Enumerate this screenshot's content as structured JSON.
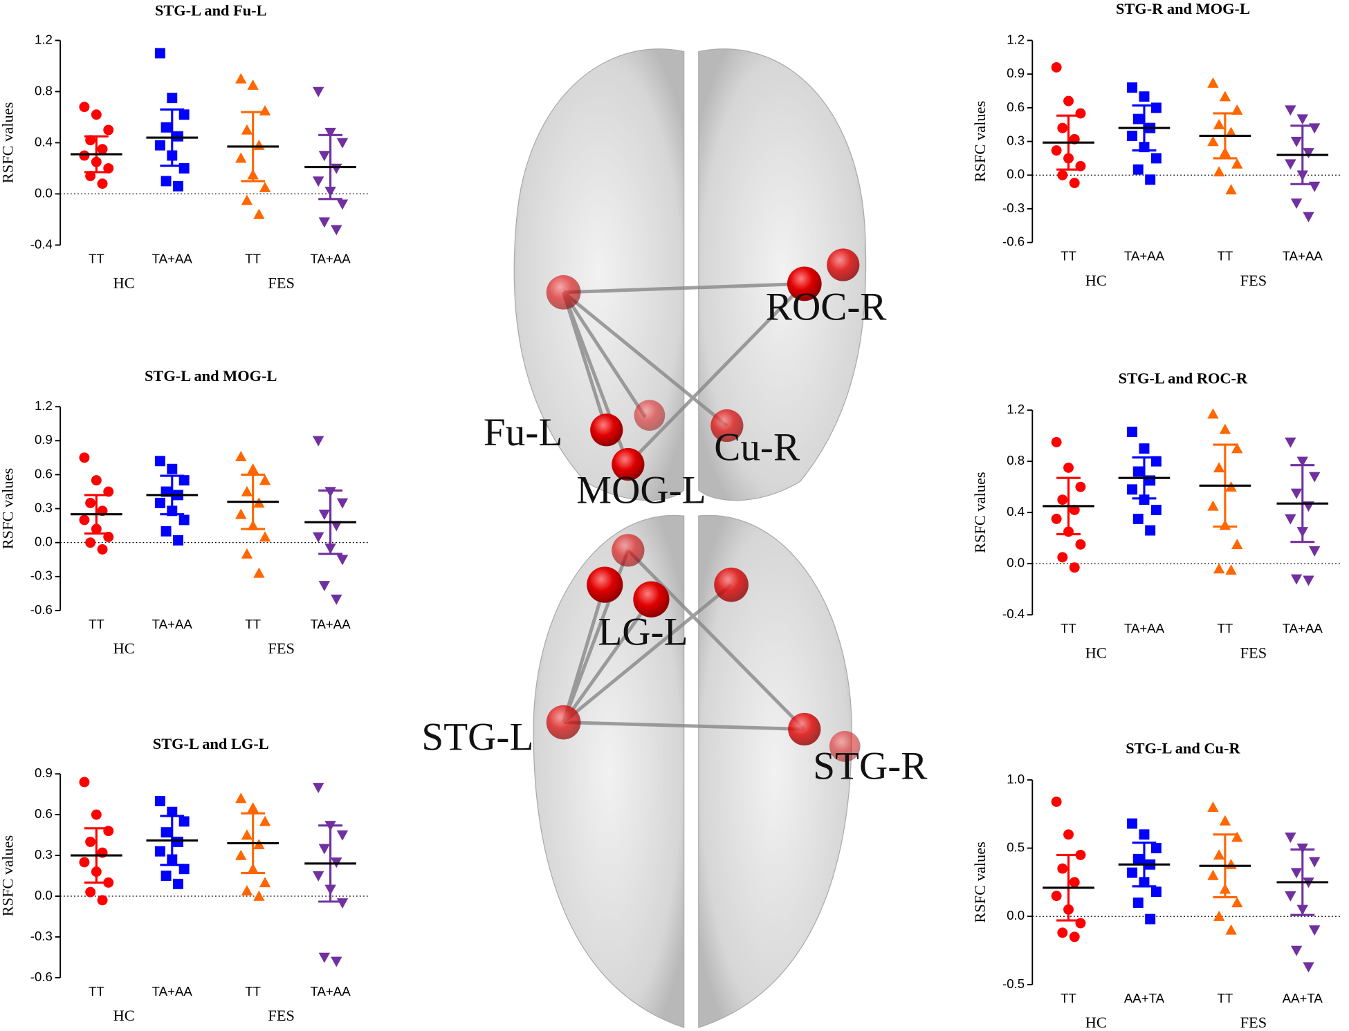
{
  "chart_data": [
    {
      "type": "scatter",
      "title": "STG-L and Fu-L",
      "ylabel": "RSFC values",
      "categories": [
        "TT",
        "TA+AA",
        "TT",
        "TA+AA"
      ],
      "groups": [
        "HC",
        "FES"
      ],
      "hline": 0,
      "ylim": [
        -0.4,
        1.2
      ],
      "yticks": [
        -0.4,
        {
          "value": 0,
          "label": "0.0"
        },
        0.4,
        0.8,
        1.2
      ],
      "series": [
        {
          "color": "#ff0000",
          "marker": "circle",
          "mean": 0.31,
          "sd": 0.14,
          "values": [
            0.68,
            0.62,
            0.5,
            0.42,
            0.35,
            0.3,
            0.25,
            0.2,
            0.14,
            0.08
          ]
        },
        {
          "color": "#0000ff",
          "marker": "square",
          "mean": 0.44,
          "sd": 0.22,
          "values": [
            1.1,
            0.75,
            0.62,
            0.52,
            0.45,
            0.38,
            0.3,
            0.2,
            0.1,
            0.06
          ]
        },
        {
          "color": "#ff6600",
          "marker": "triangle-up",
          "mean": 0.37,
          "sd": 0.27,
          "values": [
            0.9,
            0.85,
            0.65,
            0.5,
            0.38,
            0.28,
            0.15,
            0.05,
            -0.05,
            -0.16
          ]
        },
        {
          "color": "#7030a0",
          "marker": "triangle-down",
          "mean": 0.21,
          "sd": 0.25,
          "values": [
            0.8,
            0.48,
            0.4,
            0.3,
            0.2,
            0.1,
            0.02,
            -0.08,
            -0.22,
            -0.28
          ]
        }
      ]
    },
    {
      "type": "scatter",
      "title": "STG-L and MOG-L",
      "ylabel": "RSFC values",
      "categories": [
        "TT",
        "TA+AA",
        "TT",
        "TA+AA"
      ],
      "groups": [
        "HC",
        "FES"
      ],
      "hline": 0,
      "ylim": [
        -0.6,
        1.2
      ],
      "yticks": [
        -0.6,
        -0.3,
        {
          "value": 0,
          "label": "0.0"
        },
        0.3,
        0.6,
        0.9,
        1.2
      ],
      "series": [
        {
          "color": "#ff0000",
          "marker": "circle",
          "mean": 0.25,
          "sd": 0.17,
          "values": [
            0.75,
            0.55,
            0.45,
            0.35,
            0.28,
            0.2,
            0.12,
            0.05,
            0.0,
            -0.06
          ]
        },
        {
          "color": "#0000ff",
          "marker": "square",
          "mean": 0.42,
          "sd": 0.17,
          "values": [
            0.72,
            0.65,
            0.55,
            0.45,
            0.42,
            0.35,
            0.28,
            0.2,
            0.1,
            0.02
          ]
        },
        {
          "color": "#ff6600",
          "marker": "triangle-up",
          "mean": 0.36,
          "sd": 0.24,
          "values": [
            0.76,
            0.65,
            0.55,
            0.45,
            0.35,
            0.25,
            0.15,
            0.05,
            -0.1,
            -0.27
          ]
        },
        {
          "color": "#7030a0",
          "marker": "triangle-down",
          "mean": 0.18,
          "sd": 0.28,
          "values": [
            0.9,
            0.45,
            0.35,
            0.25,
            0.15,
            0.05,
            -0.05,
            -0.15,
            -0.38,
            -0.5
          ]
        }
      ]
    },
    {
      "type": "scatter",
      "title": "STG-L and LG-L",
      "ylabel": "RSFC values",
      "categories": [
        "TT",
        "TA+AA",
        "TT",
        "TA+AA"
      ],
      "groups": [
        "HC",
        "FES"
      ],
      "hline": 0,
      "ylim": [
        -0.6,
        0.9
      ],
      "yticks": [
        -0.6,
        -0.3,
        {
          "value": 0,
          "label": "0.0"
        },
        0.3,
        0.6,
        0.9
      ],
      "series": [
        {
          "color": "#ff0000",
          "marker": "circle",
          "mean": 0.3,
          "sd": 0.2,
          "values": [
            0.84,
            0.6,
            0.48,
            0.4,
            0.32,
            0.25,
            0.18,
            0.1,
            0.03,
            -0.03
          ]
        },
        {
          "color": "#0000ff",
          "marker": "square",
          "mean": 0.41,
          "sd": 0.18,
          "values": [
            0.7,
            0.62,
            0.55,
            0.47,
            0.4,
            0.33,
            0.27,
            0.2,
            0.15,
            0.09
          ]
        },
        {
          "color": "#ff6600",
          "marker": "triangle-up",
          "mean": 0.39,
          "sd": 0.22,
          "values": [
            0.72,
            0.65,
            0.55,
            0.45,
            0.38,
            0.3,
            0.2,
            0.1,
            0.04,
            0.0
          ]
        },
        {
          "color": "#7030a0",
          "marker": "triangle-down",
          "mean": 0.24,
          "sd": 0.28,
          "values": [
            0.8,
            0.52,
            0.45,
            0.35,
            0.25,
            0.15,
            0.05,
            -0.05,
            -0.45,
            -0.48
          ]
        }
      ]
    },
    {
      "type": "scatter",
      "title": "STG-R and MOG-L",
      "ylabel": "RSFC values",
      "categories": [
        "TT",
        "TA+AA",
        "TT",
        "TA+AA"
      ],
      "groups": [
        "HC",
        "FES"
      ],
      "hline": 0,
      "ylim": [
        -0.6,
        1.2
      ],
      "yticks": [
        -0.6,
        -0.3,
        {
          "value": 0,
          "label": "0.0"
        },
        0.3,
        0.6,
        0.9,
        1.2
      ],
      "series": [
        {
          "color": "#ff0000",
          "marker": "circle",
          "mean": 0.29,
          "sd": 0.24,
          "values": [
            0.96,
            0.66,
            0.55,
            0.42,
            0.32,
            0.22,
            0.15,
            0.08,
            0.0,
            -0.07
          ]
        },
        {
          "color": "#0000ff",
          "marker": "square",
          "mean": 0.42,
          "sd": 0.2,
          "values": [
            0.78,
            0.7,
            0.6,
            0.5,
            0.42,
            0.35,
            0.25,
            0.15,
            0.05,
            -0.04
          ]
        },
        {
          "color": "#ff6600",
          "marker": "triangle-up",
          "mean": 0.35,
          "sd": 0.2,
          "values": [
            0.82,
            0.7,
            0.58,
            0.45,
            0.38,
            0.3,
            0.2,
            0.1,
            0.03,
            -0.13
          ]
        },
        {
          "color": "#7030a0",
          "marker": "triangle-down",
          "mean": 0.18,
          "sd": 0.26,
          "values": [
            0.58,
            0.5,
            0.42,
            0.3,
            0.2,
            0.1,
            0.0,
            -0.1,
            -0.25,
            -0.37
          ]
        }
      ]
    },
    {
      "type": "scatter",
      "title": "STG-L and ROC-R",
      "ylabel": "RSFC values",
      "categories": [
        "TT",
        "TA+AA",
        "TT",
        "TA+AA"
      ],
      "groups": [
        "HC",
        "FES"
      ],
      "hline": 0,
      "ylim": [
        -0.4,
        1.2
      ],
      "yticks": [
        -0.4,
        {
          "value": 0,
          "label": "0.0"
        },
        0.4,
        0.8,
        1.2
      ],
      "series": [
        {
          "color": "#ff0000",
          "marker": "circle",
          "mean": 0.45,
          "sd": 0.22,
          "values": [
            0.95,
            0.75,
            0.6,
            0.5,
            0.42,
            0.35,
            0.25,
            0.15,
            0.05,
            -0.03
          ]
        },
        {
          "color": "#0000ff",
          "marker": "square",
          "mean": 0.67,
          "sd": 0.16,
          "values": [
            1.03,
            0.9,
            0.8,
            0.72,
            0.65,
            0.58,
            0.5,
            0.42,
            0.35,
            0.26
          ]
        },
        {
          "color": "#ff6600",
          "marker": "triangle-up",
          "mean": 0.61,
          "sd": 0.32,
          "values": [
            1.17,
            1.05,
            0.9,
            0.75,
            0.6,
            0.45,
            0.3,
            0.15,
            -0.04,
            -0.05
          ]
        },
        {
          "color": "#7030a0",
          "marker": "triangle-down",
          "mean": 0.47,
          "sd": 0.3,
          "values": [
            0.95,
            0.8,
            0.68,
            0.55,
            0.45,
            0.35,
            0.25,
            0.1,
            -0.12,
            -0.13
          ]
        }
      ]
    },
    {
      "type": "scatter",
      "title": "STG-L and Cu-R",
      "ylabel": "RSFC values",
      "categories": [
        "TT",
        "AA+TA",
        "TT",
        "AA+TA"
      ],
      "groups": [
        "HC",
        "FES"
      ],
      "hline": 0,
      "ylim": [
        -0.5,
        1.0
      ],
      "yticks": [
        -0.5,
        {
          "value": 0,
          "label": "0.0"
        },
        0.5,
        {
          "value": 1,
          "label": "1.0"
        }
      ],
      "series": [
        {
          "color": "#ff0000",
          "marker": "circle",
          "mean": 0.21,
          "sd": 0.24,
          "values": [
            0.84,
            0.6,
            0.45,
            0.35,
            0.25,
            0.15,
            0.05,
            -0.05,
            -0.12,
            -0.15
          ]
        },
        {
          "color": "#0000ff",
          "marker": "square",
          "mean": 0.38,
          "sd": 0.16,
          "values": [
            0.68,
            0.6,
            0.5,
            0.42,
            0.38,
            0.32,
            0.25,
            0.18,
            0.1,
            -0.02
          ]
        },
        {
          "color": "#ff6600",
          "marker": "triangle-up",
          "mean": 0.37,
          "sd": 0.23,
          "values": [
            0.8,
            0.7,
            0.58,
            0.45,
            0.38,
            0.3,
            0.2,
            0.1,
            0.0,
            -0.1
          ]
        },
        {
          "color": "#7030a0",
          "marker": "triangle-down",
          "mean": 0.25,
          "sd": 0.24,
          "values": [
            0.58,
            0.5,
            0.4,
            0.32,
            0.25,
            0.15,
            0.05,
            -0.1,
            -0.25,
            -0.37
          ]
        }
      ]
    }
  ],
  "brain": {
    "labels": [
      "ROC-R",
      "Fu-L",
      "Cu-R",
      "MOG-L",
      "LG-L",
      "STG-L",
      "STG-R"
    ]
  }
}
